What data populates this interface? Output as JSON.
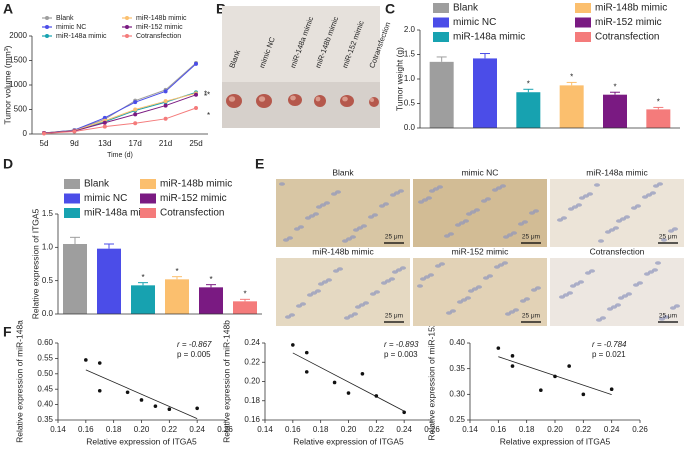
{
  "chart_data": [
    {
      "type": "line",
      "panel": "A",
      "y_label": "Tumor volume (mm³)",
      "x_label": "Time (d)",
      "categories": [
        "5d",
        "9d",
        "13d",
        "17d",
        "21d",
        "25d"
      ],
      "ylim": [
        0,
        2000
      ],
      "yticks": [
        0,
        500,
        1000,
        1500,
        2000
      ],
      "series": [
        {
          "name": "Blank",
          "color": "#9e9e9e",
          "values": [
            20,
            80,
            300,
            680,
            900,
            1450
          ]
        },
        {
          "name": "mimic NC",
          "color": "#4b4de8",
          "values": [
            20,
            80,
            330,
            650,
            870,
            1430
          ]
        },
        {
          "name": "miR-148a mimic",
          "color": "#17a2b0",
          "values": [
            20,
            70,
            250,
            480,
            650,
            850
          ]
        },
        {
          "name": "miR-148b mimic",
          "color": "#fbbf6e",
          "values": [
            20,
            70,
            270,
            500,
            670,
            830
          ]
        },
        {
          "name": "miR-152 mimic",
          "color": "#7a1a82",
          "values": [
            20,
            60,
            230,
            400,
            580,
            800
          ]
        },
        {
          "name": "Cotransfection",
          "color": "#f47b7b",
          "values": [
            10,
            50,
            150,
            220,
            310,
            530
          ]
        }
      ],
      "annotations": [
        "*",
        "*",
        "*",
        "*"
      ]
    },
    {
      "type": "bar",
      "panel": "C",
      "y_label": "Tumor weight (g)",
      "categories": [
        "Blank",
        "mimic NC",
        "miR-148a mimic",
        "miR-148b mimic",
        "miR-152 mimic",
        "Cotransfection"
      ],
      "colors": [
        "#9e9e9e",
        "#4b4de8",
        "#17a2b0",
        "#fbbf6e",
        "#7a1a82",
        "#f47b7b"
      ],
      "values": [
        1.35,
        1.42,
        0.73,
        0.87,
        0.68,
        0.38
      ],
      "errors": [
        0.1,
        0.1,
        0.06,
        0.06,
        0.05,
        0.04
      ],
      "significance": [
        null,
        null,
        "*",
        "*",
        "*",
        "*"
      ],
      "ylim": [
        0,
        2
      ],
      "yticks": [
        {
          "value": 0,
          "label": "0.0"
        },
        {
          "value": 0.5,
          "label": "0.5"
        },
        {
          "value": 1,
          "label": "1.0"
        },
        {
          "value": 1.5,
          "label": "1.5"
        },
        {
          "value": 2,
          "label": "2.0"
        }
      ]
    },
    {
      "type": "bar",
      "panel": "D",
      "y_label": "Relative expression of ITGA5",
      "categories": [
        "Blank",
        "mimic NC",
        "miR-148a mimic",
        "miR-148b mimic",
        "miR-152 mimic",
        "Cotransfection"
      ],
      "colors": [
        "#9e9e9e",
        "#4b4de8",
        "#17a2b0",
        "#fbbf6e",
        "#7a1a82",
        "#f47b7b"
      ],
      "values": [
        1.05,
        0.98,
        0.43,
        0.52,
        0.4,
        0.19
      ],
      "errors": [
        0.1,
        0.07,
        0.04,
        0.04,
        0.04,
        0.03
      ],
      "significance": [
        null,
        null,
        "*",
        "*",
        "*",
        "*"
      ],
      "ylim": [
        0,
        1.5
      ],
      "yticks": [
        {
          "value": 0,
          "label": "0.0"
        },
        {
          "value": 0.5,
          "label": "0.5"
        },
        {
          "value": 1,
          "label": "1.0"
        },
        {
          "value": 1.5,
          "label": "1.5"
        }
      ]
    },
    {
      "type": "scatter",
      "panel": "F",
      "y_label": "Relative expression of miR-148a",
      "x_label": "Relative expression of ITGA5",
      "x": [
        0.16,
        0.17,
        0.17,
        0.19,
        0.2,
        0.21,
        0.22,
        0.24
      ],
      "values": [
        0.545,
        0.535,
        0.445,
        0.44,
        0.415,
        0.395,
        0.385,
        0.388
      ],
      "xlim": [
        0.14,
        0.26
      ],
      "xticks": [
        {
          "value": 0.14,
          "label": "0.14"
        },
        {
          "value": 0.16,
          "label": "0.16"
        },
        {
          "value": 0.18,
          "label": "0.18"
        },
        {
          "value": 0.2,
          "label": "0.20"
        },
        {
          "value": 0.22,
          "label": "0.22"
        },
        {
          "value": 0.24,
          "label": "0.24"
        },
        {
          "value": 0.26,
          "label": "0.26"
        }
      ],
      "ylim": [
        0.35,
        0.6
      ],
      "yticks": [
        {
          "value": 0.35,
          "label": "0.35"
        },
        {
          "value": 0.4,
          "label": "0.40"
        },
        {
          "value": 0.45,
          "label": "0.45"
        },
        {
          "value": 0.5,
          "label": "0.50"
        },
        {
          "value": 0.55,
          "label": "0.55"
        },
        {
          "value": 0.6,
          "label": "0.60"
        }
      ],
      "annotations": [
        "r = -0.867",
        "p = 0.005"
      ]
    },
    {
      "type": "scatter",
      "y_label": "Relative expression of miR-148b",
      "x_label": "Relative expression of ITGA5",
      "x": [
        0.16,
        0.17,
        0.17,
        0.19,
        0.2,
        0.21,
        0.22,
        0.24
      ],
      "values": [
        0.238,
        0.23,
        0.21,
        0.199,
        0.188,
        0.208,
        0.185,
        0.168
      ],
      "xlim": [
        0.14,
        0.26
      ],
      "xticks": [
        {
          "value": 0.14,
          "label": "0.14"
        },
        {
          "value": 0.16,
          "label": "0.16"
        },
        {
          "value": 0.18,
          "label": "0.18"
        },
        {
          "value": 0.2,
          "label": "0.20"
        },
        {
          "value": 0.22,
          "label": "0.22"
        },
        {
          "value": 0.24,
          "label": "0.24"
        },
        {
          "value": 0.26,
          "label": "0.26"
        }
      ],
      "ylim": [
        0.16,
        0.24
      ],
      "yticks": [
        {
          "value": 0.16,
          "label": "0.16"
        },
        {
          "value": 0.18,
          "label": "0.18"
        },
        {
          "value": 0.2,
          "label": "0.20"
        },
        {
          "value": 0.22,
          "label": "0.22"
        },
        {
          "value": 0.24,
          "label": "0.24"
        }
      ],
      "annotations": [
        "r = -0.893",
        "p = 0.003"
      ]
    },
    {
      "type": "scatter",
      "y_label": "Relative expression of miR-152",
      "x_label": "Relative expression of ITGA5",
      "x": [
        0.16,
        0.17,
        0.17,
        0.19,
        0.2,
        0.21,
        0.22,
        0.24
      ],
      "values": [
        0.39,
        0.375,
        0.355,
        0.308,
        0.335,
        0.355,
        0.3,
        0.31
      ],
      "xlim": [
        0.14,
        0.26
      ],
      "xticks": [
        {
          "value": 0.14,
          "label": "0.14"
        },
        {
          "value": 0.16,
          "label": "0.16"
        },
        {
          "value": 0.18,
          "label": "0.18"
        },
        {
          "value": 0.2,
          "label": "0.20"
        },
        {
          "value": 0.22,
          "label": "0.22"
        },
        {
          "value": 0.24,
          "label": "0.24"
        },
        {
          "value": 0.26,
          "label": "0.26"
        }
      ],
      "ylim": [
        0.25,
        0.4
      ],
      "yticks": [
        {
          "value": 0.25,
          "label": "0.25"
        },
        {
          "value": 0.3,
          "label": "0.30"
        },
        {
          "value": 0.35,
          "label": "0.35"
        },
        {
          "value": 0.4,
          "label": "0.40"
        }
      ],
      "annotations": [
        "r = -0.784",
        "p = 0.021"
      ]
    }
  ],
  "panel_b": {
    "panel": "B",
    "labels": [
      "Blank",
      "mimic NC",
      "miR-148a mimic",
      "miR-148b mimic",
      "miR-152 mimic",
      "Cotransfection"
    ]
  },
  "panel_e": {
    "panel": "E",
    "labels": [
      "Blank",
      "mimic NC",
      "miR-148a mimic",
      "miR-148b mimic",
      "miR-152 mimic",
      "Cotransfection"
    ],
    "scale_bar": "25 μm"
  }
}
